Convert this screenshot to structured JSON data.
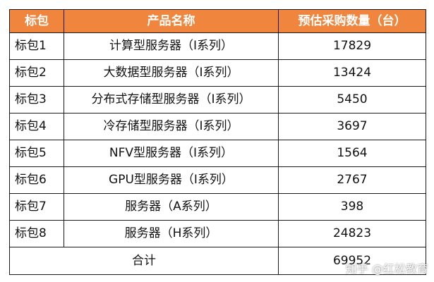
{
  "table": {
    "headers": [
      "标包",
      "产品名称",
      "预估采购数量（台）"
    ],
    "rows": [
      {
        "package": "标包1",
        "product": "计算型服务器（I系列）",
        "quantity": "17829"
      },
      {
        "package": "标包2",
        "product": "大数据型服务器（I系列）",
        "quantity": "13424"
      },
      {
        "package": "标包3",
        "product": "分布式存储型服务器（I系列）",
        "quantity": "5450"
      },
      {
        "package": "标包4",
        "product": "冷存储型服务器（I系列）",
        "quantity": "3697"
      },
      {
        "package": "标包5",
        "product": "NFV型服务器（I系列）",
        "quantity": "1564"
      },
      {
        "package": "标包6",
        "product": "GPU型服务器（I系列）",
        "quantity": "2767"
      },
      {
        "package": "标包7",
        "product": "服务器（A系列）",
        "quantity": "398"
      },
      {
        "package": "标包8",
        "product": "服务器（H系列）",
        "quantity": "24823"
      }
    ],
    "total": {
      "label": "合计",
      "quantity": "69952"
    }
  },
  "colors": {
    "header_bg": "#f0853e",
    "header_text": "#ffffff",
    "border": "#1a1a1a"
  },
  "watermark": "知乎 @红松教育"
}
